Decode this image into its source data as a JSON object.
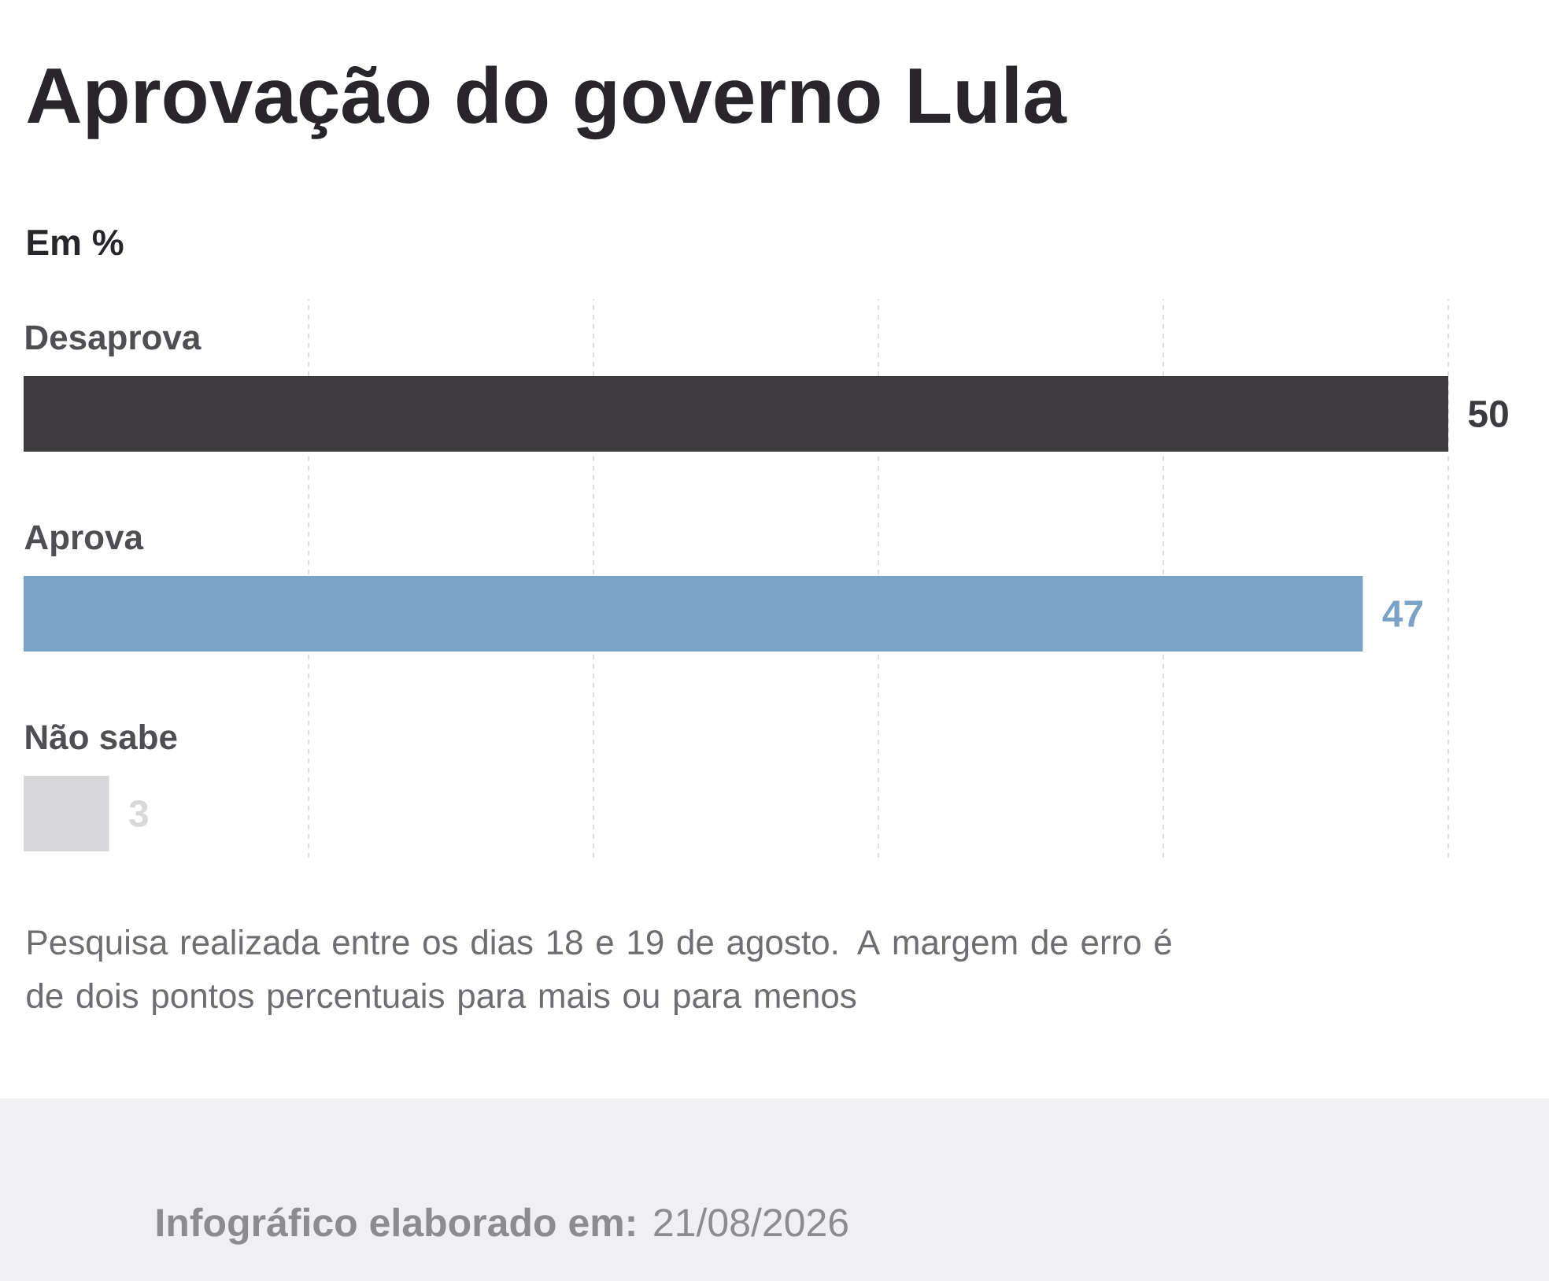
{
  "chart_data": {
    "type": "bar",
    "orientation": "horizontal",
    "title": "Aprovação do governo Lula",
    "subtitle": "Em %",
    "categories": [
      "Desaprova",
      "Aprova",
      "Não sabe"
    ],
    "values": [
      50,
      47,
      3
    ],
    "colors": [
      "#3d3a3f",
      "#7ba3c7",
      "#d8d8da"
    ],
    "xlim": [
      0,
      50
    ],
    "xticks": [
      {
        "value": 10,
        "label": null
      },
      {
        "value": 20,
        "label": null
      },
      {
        "value": 30,
        "label": null
      },
      {
        "value": 40,
        "label": null
      },
      {
        "value": 50,
        "label": null
      }
    ],
    "grid": "x",
    "data_labels": true,
    "annotations": [
      "Pesquisa realizada entre os dias 18 e 19 de agosto. A margem de erro é de dois pontos percentuais para mais ou para menos",
      "**Infográfico elaborado em:** 21/08/2026"
    ]
  }
}
